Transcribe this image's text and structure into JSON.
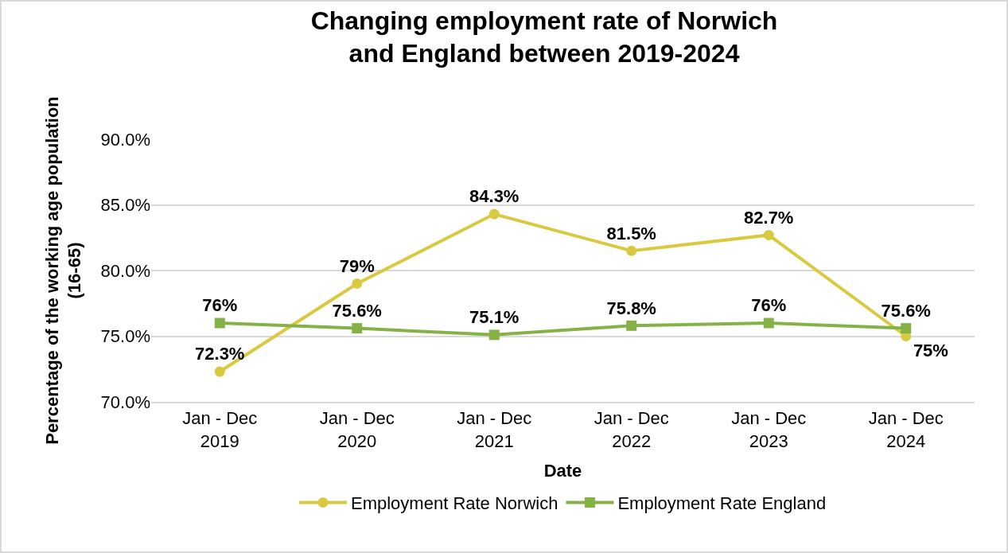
{
  "chart_data": {
    "type": "line",
    "title": "Changing employment rate of Norwich\nand England between 2019-2024",
    "xlabel": "Date",
    "ylabel": "Percentage of the working age population\n(16-65)",
    "categories": [
      "Jan - Dec\n2019",
      "Jan - Dec\n2020",
      "Jan - Dec\n2021",
      "Jan - Dec\n2022",
      "Jan - Dec\n2023",
      "Jan - Dec\n2024"
    ],
    "series": [
      {
        "name": "Employment Rate Norwich",
        "color": "#d9c93f",
        "marker": "circle",
        "values": [
          72.3,
          79,
          84.3,
          81.5,
          82.7,
          75
        ],
        "value_labels": [
          "72.3%",
          "79%",
          "84.3%",
          "81.5%",
          "82.7%",
          "75%"
        ]
      },
      {
        "name": "Employment Rate England",
        "color": "#84b247",
        "marker": "square",
        "values": [
          76,
          75.6,
          75.1,
          75.8,
          76,
          75.6
        ],
        "value_labels": [
          "76%",
          "75.6%",
          "75.1%",
          "75.8%",
          "76%",
          "75.6%"
        ]
      }
    ],
    "ylim": [
      70,
      90
    ],
    "yticks": [
      {
        "value": 70,
        "label": "70.0%"
      },
      {
        "value": 75,
        "label": "75.0%"
      },
      {
        "value": 80,
        "label": "80.0%"
      },
      {
        "value": 85,
        "label": "85.0%"
      },
      {
        "value": 90,
        "label": "90.0%"
      }
    ],
    "grid": "y",
    "legend": "bottom",
    "line_style": "solid"
  }
}
